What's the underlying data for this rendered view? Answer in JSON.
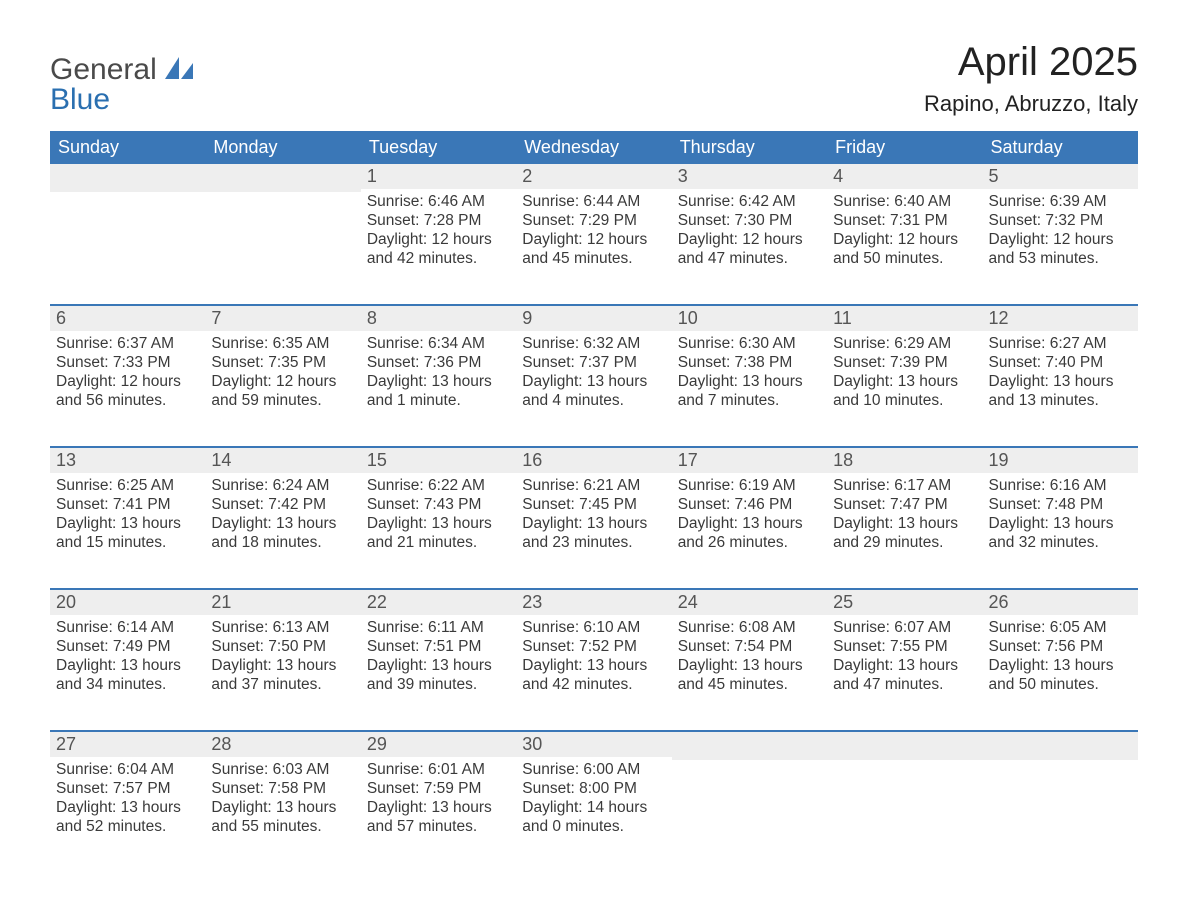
{
  "logo": {
    "general": "General",
    "blue": "Blue",
    "sail_color": "#3a77b7"
  },
  "title": "April 2025",
  "subtitle": "Rapino, Abruzzo, Italy",
  "colors": {
    "header_bg": "#3a77b7",
    "header_fg": "#ffffff",
    "daynum_bg": "#eeeeee",
    "text": "#333333",
    "page_bg": "#ffffff"
  },
  "weekdays": [
    "Sunday",
    "Monday",
    "Tuesday",
    "Wednesday",
    "Thursday",
    "Friday",
    "Saturday"
  ],
  "weeks": [
    [
      null,
      null,
      {
        "n": "1",
        "sunrise": "Sunrise: 6:46 AM",
        "sunset": "Sunset: 7:28 PM",
        "daylight": "Daylight: 12 hours and 42 minutes."
      },
      {
        "n": "2",
        "sunrise": "Sunrise: 6:44 AM",
        "sunset": "Sunset: 7:29 PM",
        "daylight": "Daylight: 12 hours and 45 minutes."
      },
      {
        "n": "3",
        "sunrise": "Sunrise: 6:42 AM",
        "sunset": "Sunset: 7:30 PM",
        "daylight": "Daylight: 12 hours and 47 minutes."
      },
      {
        "n": "4",
        "sunrise": "Sunrise: 6:40 AM",
        "sunset": "Sunset: 7:31 PM",
        "daylight": "Daylight: 12 hours and 50 minutes."
      },
      {
        "n": "5",
        "sunrise": "Sunrise: 6:39 AM",
        "sunset": "Sunset: 7:32 PM",
        "daylight": "Daylight: 12 hours and 53 minutes."
      }
    ],
    [
      {
        "n": "6",
        "sunrise": "Sunrise: 6:37 AM",
        "sunset": "Sunset: 7:33 PM",
        "daylight": "Daylight: 12 hours and 56 minutes."
      },
      {
        "n": "7",
        "sunrise": "Sunrise: 6:35 AM",
        "sunset": "Sunset: 7:35 PM",
        "daylight": "Daylight: 12 hours and 59 minutes."
      },
      {
        "n": "8",
        "sunrise": "Sunrise: 6:34 AM",
        "sunset": "Sunset: 7:36 PM",
        "daylight": "Daylight: 13 hours and 1 minute."
      },
      {
        "n": "9",
        "sunrise": "Sunrise: 6:32 AM",
        "sunset": "Sunset: 7:37 PM",
        "daylight": "Daylight: 13 hours and 4 minutes."
      },
      {
        "n": "10",
        "sunrise": "Sunrise: 6:30 AM",
        "sunset": "Sunset: 7:38 PM",
        "daylight": "Daylight: 13 hours and 7 minutes."
      },
      {
        "n": "11",
        "sunrise": "Sunrise: 6:29 AM",
        "sunset": "Sunset: 7:39 PM",
        "daylight": "Daylight: 13 hours and 10 minutes."
      },
      {
        "n": "12",
        "sunrise": "Sunrise: 6:27 AM",
        "sunset": "Sunset: 7:40 PM",
        "daylight": "Daylight: 13 hours and 13 minutes."
      }
    ],
    [
      {
        "n": "13",
        "sunrise": "Sunrise: 6:25 AM",
        "sunset": "Sunset: 7:41 PM",
        "daylight": "Daylight: 13 hours and 15 minutes."
      },
      {
        "n": "14",
        "sunrise": "Sunrise: 6:24 AM",
        "sunset": "Sunset: 7:42 PM",
        "daylight": "Daylight: 13 hours and 18 minutes."
      },
      {
        "n": "15",
        "sunrise": "Sunrise: 6:22 AM",
        "sunset": "Sunset: 7:43 PM",
        "daylight": "Daylight: 13 hours and 21 minutes."
      },
      {
        "n": "16",
        "sunrise": "Sunrise: 6:21 AM",
        "sunset": "Sunset: 7:45 PM",
        "daylight": "Daylight: 13 hours and 23 minutes."
      },
      {
        "n": "17",
        "sunrise": "Sunrise: 6:19 AM",
        "sunset": "Sunset: 7:46 PM",
        "daylight": "Daylight: 13 hours and 26 minutes."
      },
      {
        "n": "18",
        "sunrise": "Sunrise: 6:17 AM",
        "sunset": "Sunset: 7:47 PM",
        "daylight": "Daylight: 13 hours and 29 minutes."
      },
      {
        "n": "19",
        "sunrise": "Sunrise: 6:16 AM",
        "sunset": "Sunset: 7:48 PM",
        "daylight": "Daylight: 13 hours and 32 minutes."
      }
    ],
    [
      {
        "n": "20",
        "sunrise": "Sunrise: 6:14 AM",
        "sunset": "Sunset: 7:49 PM",
        "daylight": "Daylight: 13 hours and 34 minutes."
      },
      {
        "n": "21",
        "sunrise": "Sunrise: 6:13 AM",
        "sunset": "Sunset: 7:50 PM",
        "daylight": "Daylight: 13 hours and 37 minutes."
      },
      {
        "n": "22",
        "sunrise": "Sunrise: 6:11 AM",
        "sunset": "Sunset: 7:51 PM",
        "daylight": "Daylight: 13 hours and 39 minutes."
      },
      {
        "n": "23",
        "sunrise": "Sunrise: 6:10 AM",
        "sunset": "Sunset: 7:52 PM",
        "daylight": "Daylight: 13 hours and 42 minutes."
      },
      {
        "n": "24",
        "sunrise": "Sunrise: 6:08 AM",
        "sunset": "Sunset: 7:54 PM",
        "daylight": "Daylight: 13 hours and 45 minutes."
      },
      {
        "n": "25",
        "sunrise": "Sunrise: 6:07 AM",
        "sunset": "Sunset: 7:55 PM",
        "daylight": "Daylight: 13 hours and 47 minutes."
      },
      {
        "n": "26",
        "sunrise": "Sunrise: 6:05 AM",
        "sunset": "Sunset: 7:56 PM",
        "daylight": "Daylight: 13 hours and 50 minutes."
      }
    ],
    [
      {
        "n": "27",
        "sunrise": "Sunrise: 6:04 AM",
        "sunset": "Sunset: 7:57 PM",
        "daylight": "Daylight: 13 hours and 52 minutes."
      },
      {
        "n": "28",
        "sunrise": "Sunrise: 6:03 AM",
        "sunset": "Sunset: 7:58 PM",
        "daylight": "Daylight: 13 hours and 55 minutes."
      },
      {
        "n": "29",
        "sunrise": "Sunrise: 6:01 AM",
        "sunset": "Sunset: 7:59 PM",
        "daylight": "Daylight: 13 hours and 57 minutes."
      },
      {
        "n": "30",
        "sunrise": "Sunrise: 6:00 AM",
        "sunset": "Sunset: 8:00 PM",
        "daylight": "Daylight: 14 hours and 0 minutes."
      },
      null,
      null,
      null
    ]
  ]
}
